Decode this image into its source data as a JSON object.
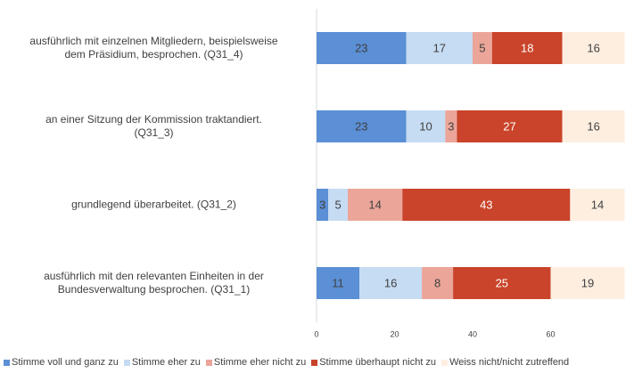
{
  "chart_data": {
    "type": "stacked-barh",
    "categories": [
      "ausführlich mit einzelnen Mitgliedern, beispielsweise\ndem Präsidium, besprochen. (Q31_4)",
      "an einer Sitzung der Kommission traktandiert.\n(Q31_3)",
      "grundlegend überarbeitet. (Q31_2)",
      "ausführlich mit den relevanten Einheiten in der\nBundesverwaltung besprochen. (Q31_1)"
    ],
    "series": [
      {
        "name": "Stimme voll und ganz zu",
        "color": "#5b8fd6",
        "values": [
          23,
          23,
          3,
          11
        ]
      },
      {
        "name": "Stimme eher zu",
        "color": "#c5dcf3",
        "values": [
          17,
          10,
          5,
          16
        ]
      },
      {
        "name": "Stimme eher nicht zu",
        "color": "#eba599",
        "values": [
          5,
          3,
          14,
          8
        ]
      },
      {
        "name": "Stimme überhaupt nicht zu",
        "color": "#c9442a",
        "values": [
          18,
          27,
          43,
          25
        ]
      },
      {
        "name": "Weiss nicht/nicht zutreffend",
        "color": "#fdeee0",
        "values": [
          16,
          16,
          14,
          19
        ]
      }
    ],
    "xlim": [
      0,
      79
    ],
    "xticks": [
      0,
      20,
      40,
      60
    ],
    "legend": "bottom"
  }
}
